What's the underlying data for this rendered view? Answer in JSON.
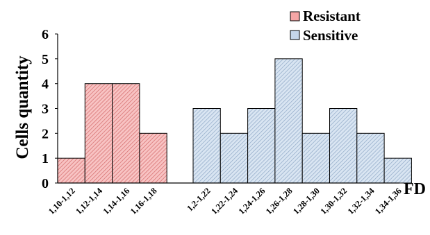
{
  "chart_data": {
    "type": "bar",
    "title": "",
    "xlabel": "FD",
    "ylabel": "Cells quantity",
    "ylim": [
      0,
      6
    ],
    "yticks": [
      "0",
      "1",
      "2",
      "3",
      "4",
      "5",
      "6"
    ],
    "grid": false,
    "legend_position": "top-right",
    "series": [
      {
        "name": "Resistant",
        "color": "#f4a6a6",
        "categories": [
          "1,10-1,12",
          "1,12-1,14",
          "1,14-1,16",
          "1,16-1,18"
        ],
        "values": [
          1,
          4,
          4,
          2
        ]
      },
      {
        "name": "Sensitive",
        "color": "#c5d6ea",
        "categories": [
          "1,2-1,22",
          "1,22-1,24",
          "1,24-1,26",
          "1,26-1,28",
          "1,28-1,30",
          "1,30-1,32",
          "1,32-1,34",
          "1,34-1,36"
        ],
        "values": [
          3,
          2,
          3,
          5,
          2,
          3,
          2,
          1
        ]
      }
    ]
  }
}
